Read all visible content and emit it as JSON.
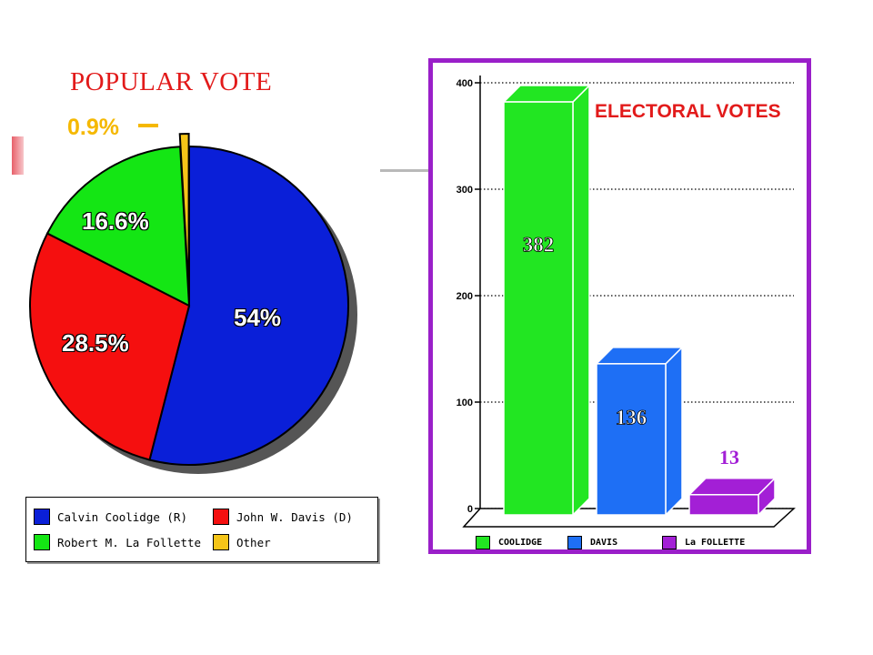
{
  "chart_data": [
    {
      "type": "pie",
      "title": "POPULAR VOTE",
      "slices": [
        {
          "name": "Calvin Coolidge (R)",
          "value": 54,
          "label": "54%",
          "color": "#0a1fd8"
        },
        {
          "name": "John W. Davis (D)",
          "value": 28.5,
          "label": "28.5%",
          "color": "#f50f0f"
        },
        {
          "name": "Robert M. La Follette",
          "value": 16.6,
          "label": "16.6%",
          "color": "#14e614"
        },
        {
          "name": "Other",
          "value": 0.9,
          "label": "0.9%",
          "color": "#f5c518"
        }
      ],
      "legend": [
        {
          "label": "Calvin Coolidge (R)",
          "color": "#0a1fd8"
        },
        {
          "label": "John W. Davis (D)",
          "color": "#f50f0f"
        },
        {
          "label": "Robert M. La Follette",
          "color": "#14e614"
        },
        {
          "label": "Other",
          "color": "#f5c518"
        }
      ]
    },
    {
      "type": "bar",
      "title": "ELECTORAL VOTES",
      "categories": [
        "COOLIDGE",
        "DAVIS",
        "La FOLLETTE"
      ],
      "values": [
        382,
        136,
        13
      ],
      "value_labels": [
        "382",
        "136",
        "13"
      ],
      "colors": [
        "#22e622",
        "#1e6ff5",
        "#a31fd6"
      ],
      "ylim": [
        0,
        400
      ],
      "yticks": [
        0,
        100,
        200,
        300,
        400
      ],
      "grid": true,
      "border_color": "#9a1fc9",
      "legend": [
        {
          "label": "COOLIDGE",
          "color": "#22e622"
        },
        {
          "label": "DAVIS",
          "color": "#1e6ff5"
        },
        {
          "label": "La FOLLETTE",
          "color": "#a31fd6"
        }
      ]
    }
  ]
}
